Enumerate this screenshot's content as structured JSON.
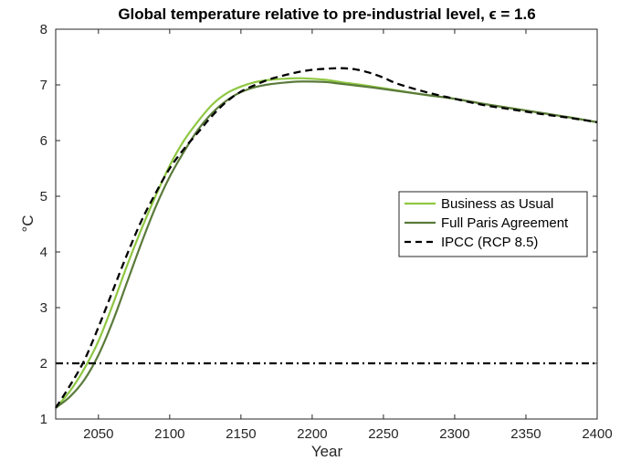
{
  "chart_data": {
    "type": "line",
    "title": "Global temperature relative to pre-industrial level, ϵ = 1.6",
    "xlabel": "Year",
    "ylabel": "°C",
    "xlim": [
      2020,
      2400
    ],
    "ylim": [
      1,
      8
    ],
    "xticks": [
      2050,
      2100,
      2150,
      2200,
      2250,
      2300,
      2350,
      2400
    ],
    "yticks": [
      1,
      2,
      3,
      4,
      5,
      6,
      7,
      8
    ],
    "grid": false,
    "legend_position": "right",
    "series": [
      {
        "name": "Business as Usual",
        "color": "#8fc743",
        "style": "solid",
        "x": [
          2020,
          2030,
          2040,
          2050,
          2060,
          2070,
          2080,
          2090,
          2100,
          2110,
          2120,
          2130,
          2140,
          2150,
          2160,
          2170,
          2180,
          2190,
          2200,
          2210,
          2220,
          2240,
          2260,
          2280,
          2300,
          2320,
          2340,
          2360,
          2380,
          2400
        ],
        "y": [
          1.2,
          1.5,
          1.9,
          2.4,
          3.05,
          3.75,
          4.4,
          5.0,
          5.55,
          6.0,
          6.35,
          6.65,
          6.85,
          6.97,
          7.05,
          7.09,
          7.11,
          7.12,
          7.11,
          7.09,
          7.05,
          6.98,
          6.9,
          6.82,
          6.75,
          6.66,
          6.58,
          6.5,
          6.42,
          6.33
        ]
      },
      {
        "name": "Full Paris Agreement",
        "color": "#5a7a3a",
        "style": "solid",
        "x": [
          2020,
          2030,
          2040,
          2050,
          2060,
          2070,
          2080,
          2090,
          2100,
          2110,
          2120,
          2130,
          2140,
          2150,
          2160,
          2170,
          2180,
          2190,
          2200,
          2210,
          2220,
          2240,
          2260,
          2280,
          2300,
          2320,
          2340,
          2360,
          2380,
          2400
        ],
        "y": [
          1.2,
          1.4,
          1.7,
          2.15,
          2.75,
          3.45,
          4.15,
          4.8,
          5.35,
          5.8,
          6.2,
          6.5,
          6.72,
          6.87,
          6.96,
          7.01,
          7.04,
          7.06,
          7.06,
          7.05,
          7.02,
          6.96,
          6.89,
          6.82,
          6.75,
          6.66,
          6.58,
          6.5,
          6.42,
          6.33
        ]
      },
      {
        "name": "IPCC (RCP 8.5)",
        "color": "#000000",
        "style": "dashed",
        "x": [
          2020,
          2030,
          2040,
          2050,
          2060,
          2070,
          2080,
          2090,
          2100,
          2110,
          2120,
          2130,
          2140,
          2150,
          2160,
          2170,
          2180,
          2190,
          2200,
          2210,
          2220,
          2230,
          2240,
          2250,
          2260,
          2280,
          2300,
          2320,
          2340,
          2360,
          2380,
          2400
        ],
        "y": [
          1.2,
          1.6,
          2.05,
          2.65,
          3.3,
          3.95,
          4.55,
          5.05,
          5.5,
          5.85,
          6.15,
          6.45,
          6.7,
          6.88,
          7.0,
          7.1,
          7.17,
          7.23,
          7.27,
          7.29,
          7.3,
          7.28,
          7.22,
          7.13,
          7.02,
          6.87,
          6.75,
          6.64,
          6.56,
          6.48,
          6.41,
          6.33
        ]
      },
      {
        "color": "#000000",
        "style": "dashdot",
        "x": [
          2020,
          2400
        ],
        "y": [
          2,
          2
        ]
      }
    ]
  }
}
